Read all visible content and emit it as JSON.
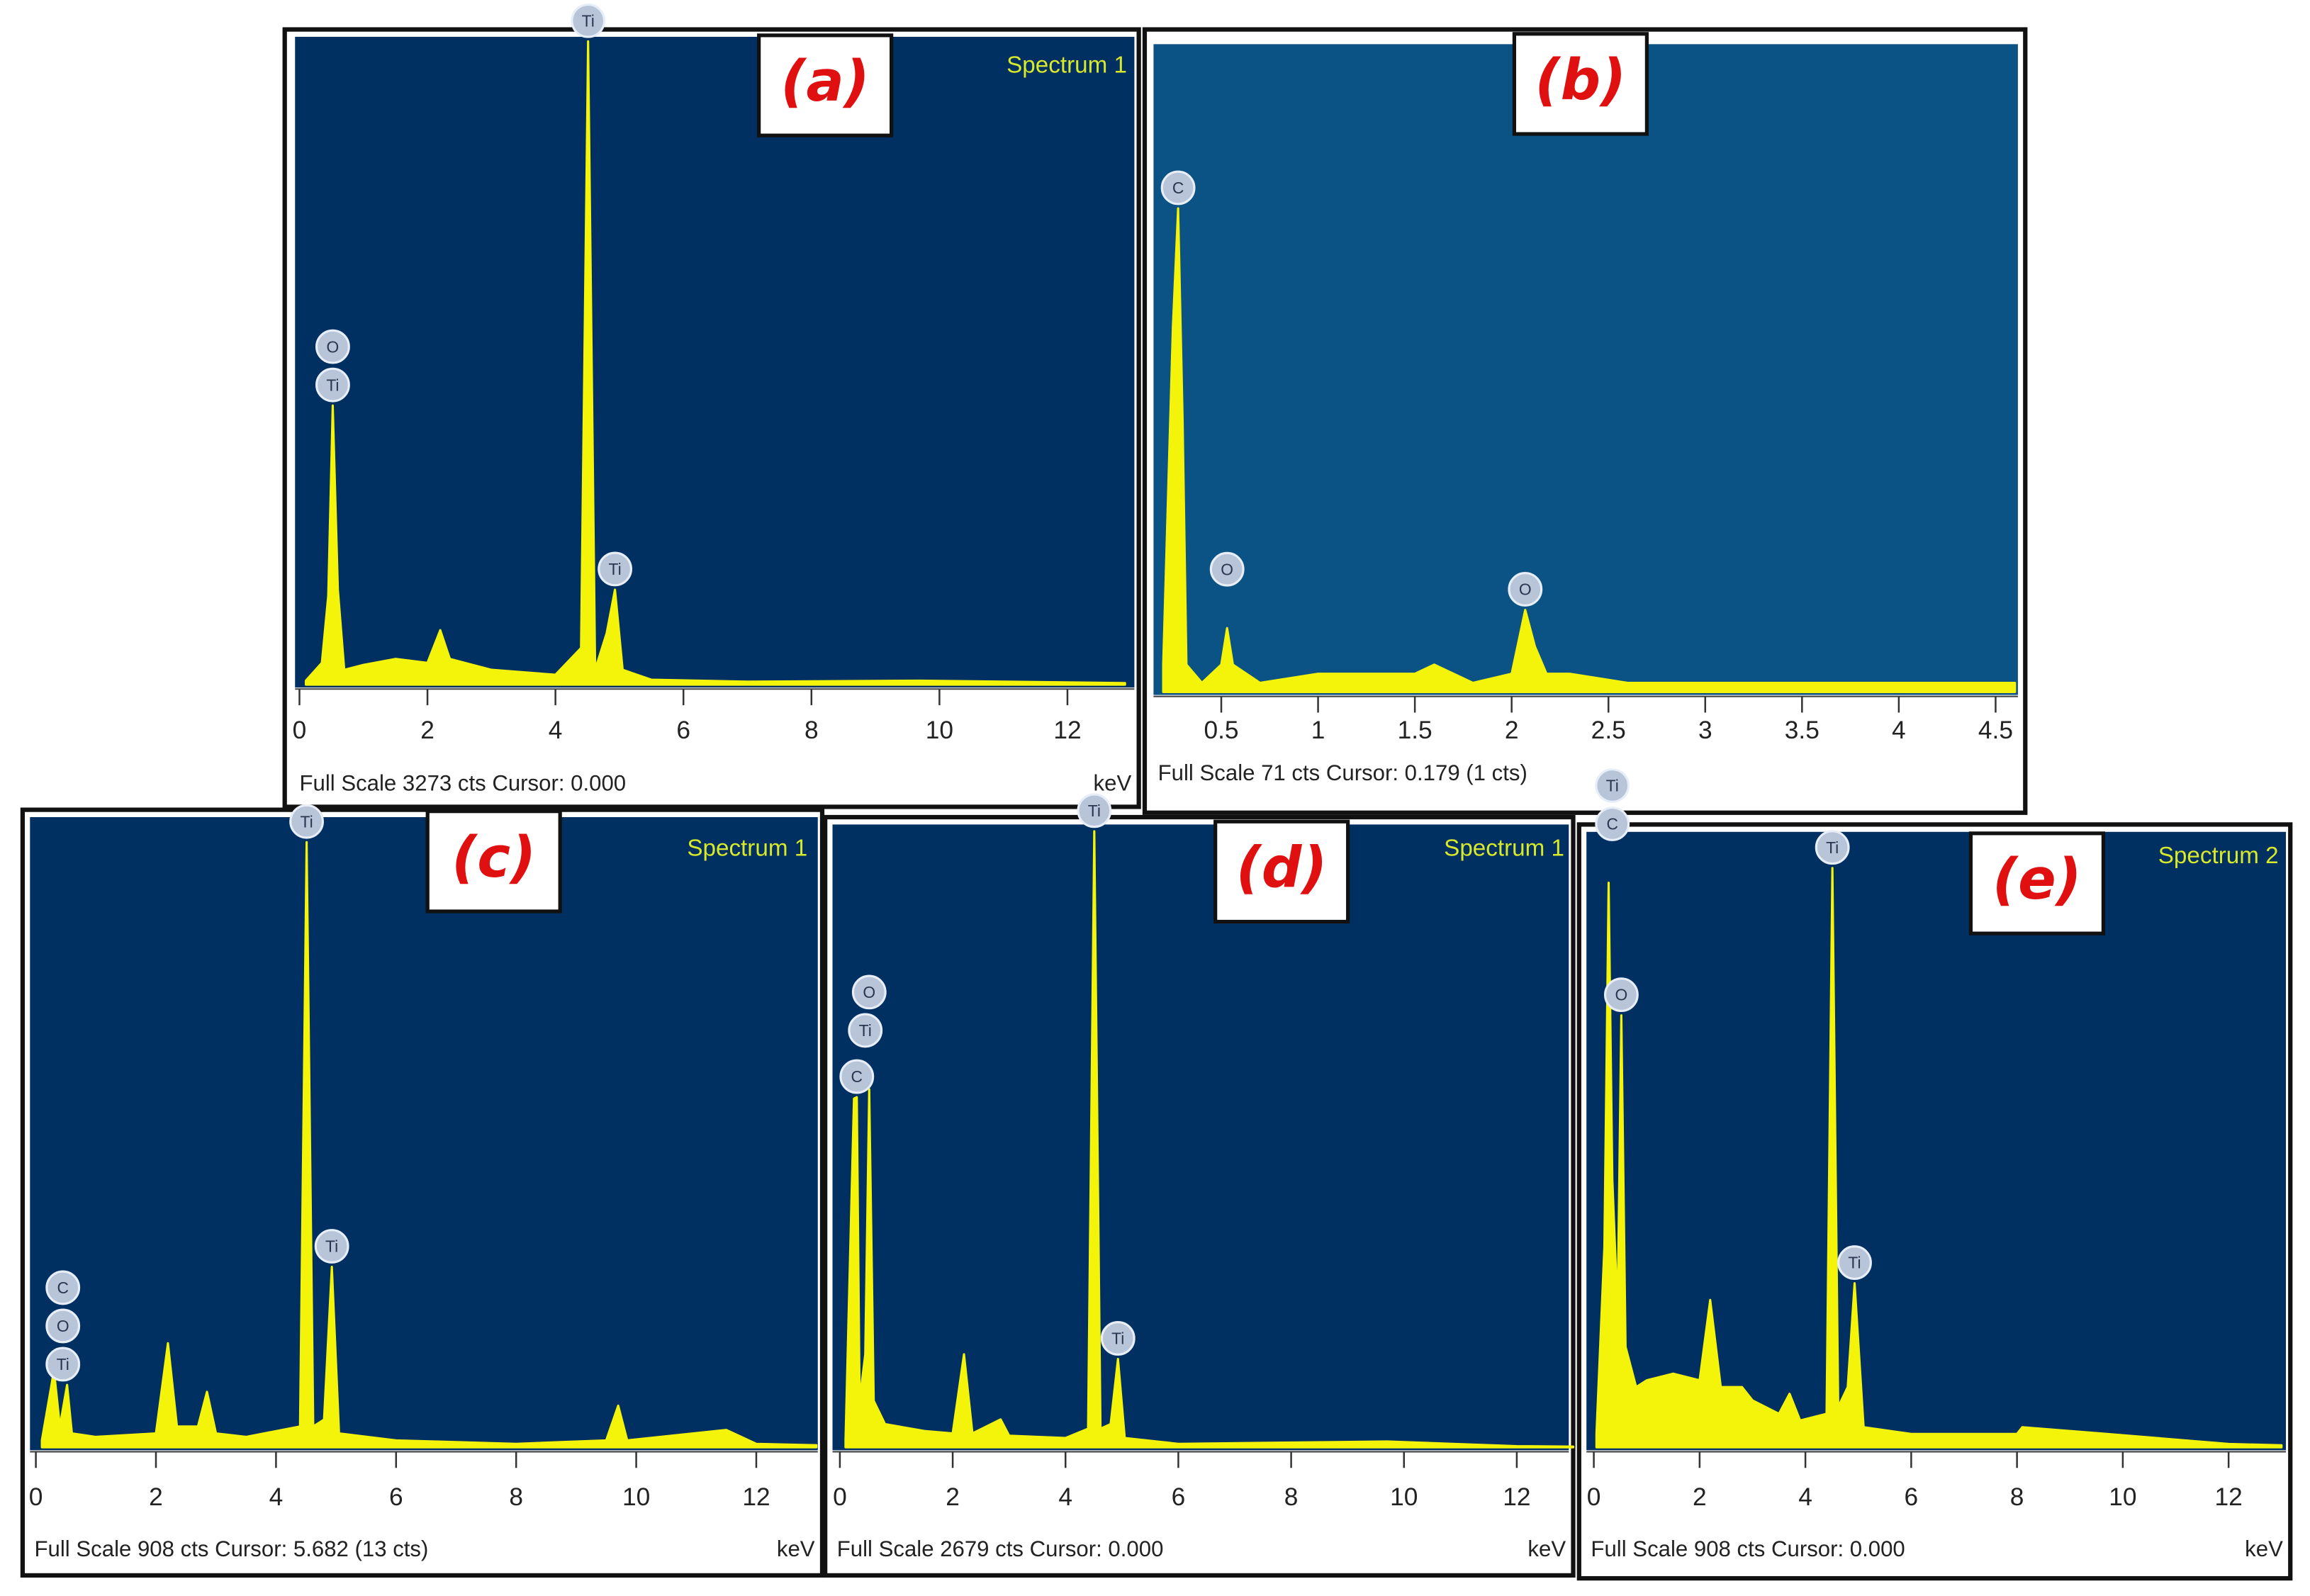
{
  "chart_data": [
    {
      "type": "area",
      "panel": "(a)",
      "spectrum": "Spectrum 1",
      "footer": "Full Scale 3273 cts Cursor: 0.000",
      "xlabel": "keV",
      "color": "#f4f40a",
      "background": "#002f62",
      "xlim": [
        0,
        13
      ],
      "xticks": [
        0,
        2,
        4,
        6,
        8,
        10,
        12
      ],
      "ylim": [
        0,
        3273
      ],
      "x": [
        0.1,
        0.35,
        0.45,
        0.52,
        0.6,
        0.7,
        1.0,
        1.5,
        2.0,
        2.2,
        2.35,
        3.0,
        4.0,
        4.4,
        4.51,
        4.62,
        4.8,
        4.93,
        5.05,
        5.5,
        7,
        9.7,
        12.9
      ],
      "values": [
        20,
        110,
        450,
        1410,
        480,
        75,
        100,
        130,
        110,
        275,
        130,
        75,
        50,
        185,
        3250,
        75,
        260,
        480,
        75,
        25,
        15,
        20,
        8
      ],
      "peak_labels": [
        {
          "label": "Ti",
          "x": 0.52
        },
        {
          "label": "O",
          "x": 0.52
        },
        {
          "label": "Ti",
          "x": 4.51
        },
        {
          "label": "Ti",
          "x": 4.93
        }
      ]
    },
    {
      "type": "area",
      "panel": "(b)",
      "footer": "Full Scale 71 cts Cursor: 0.179  (1 cts)",
      "color": "#f4f40a",
      "background": "#0b5384",
      "xlim": [
        0.15,
        4.6
      ],
      "xticks": [
        0.5,
        1,
        1.5,
        2,
        2.5,
        3,
        3.5,
        4,
        4.5
      ],
      "ylim": [
        0,
        71
      ],
      "x": [
        0.2,
        0.25,
        0.277,
        0.3,
        0.32,
        0.4,
        0.5,
        0.53,
        0.56,
        0.7,
        1.0,
        1.2,
        1.5,
        1.6,
        1.8,
        2.0,
        2.03,
        2.07,
        2.12,
        2.18,
        2.3,
        2.6,
        3.0,
        3.5,
        4.0,
        4.6
      ],
      "values": [
        3,
        40,
        53,
        30,
        3,
        1,
        3,
        7,
        3,
        1,
        2,
        2,
        2,
        3,
        1,
        2,
        5,
        9,
        5,
        2,
        2,
        1,
        1,
        1,
        1,
        1
      ],
      "peak_labels": [
        {
          "label": "C",
          "x": 0.277
        },
        {
          "label": "O",
          "x": 0.53
        },
        {
          "label": "O",
          "x": 2.07
        }
      ]
    },
    {
      "type": "area",
      "panel": "(c)",
      "spectrum": "Spectrum 1",
      "footer": "Full Scale 908 cts Cursor: 5.682  (13 cts)",
      "xlabel": "keV",
      "color": "#f4f40a",
      "background": "#002f62",
      "xlim": [
        0,
        13
      ],
      "xticks": [
        0,
        2,
        4,
        6,
        8,
        10,
        12
      ],
      "ylim": [
        0,
        908
      ],
      "x": [
        0.1,
        0.27,
        0.3,
        0.4,
        0.52,
        0.6,
        1,
        2,
        2.2,
        2.35,
        2.7,
        2.85,
        3,
        3.5,
        4.4,
        4.51,
        4.62,
        4.8,
        4.93,
        5.05,
        6,
        8,
        9.5,
        9.7,
        9.85,
        11.5,
        12,
        13
      ],
      "values": [
        10,
        95,
        112,
        30,
        90,
        20,
        15,
        20,
        150,
        30,
        30,
        80,
        20,
        15,
        30,
        872,
        30,
        40,
        260,
        20,
        10,
        5,
        10,
        60,
        10,
        25,
        5,
        3
      ],
      "peak_labels": [
        {
          "label": "Ti",
          "x": 0.45
        },
        {
          "label": "O",
          "x": 0.45
        },
        {
          "label": "C",
          "x": 0.45
        },
        {
          "label": "Ti",
          "x": 4.51
        },
        {
          "label": "Ti",
          "x": 4.93
        }
      ]
    },
    {
      "type": "area",
      "panel": "(d)",
      "spectrum": "Spectrum 1",
      "footer": "Full Scale 2679 cts Cursor: 0.000",
      "xlabel": "keV",
      "color": "#f4f40a",
      "background": "#002f62",
      "xlim": [
        0,
        13
      ],
      "xticks": [
        0,
        2,
        4,
        6,
        8,
        10,
        12
      ],
      "ylim": [
        0,
        2679
      ],
      "x": [
        0.1,
        0.25,
        0.3,
        0.35,
        0.45,
        0.52,
        0.6,
        0.8,
        1.5,
        2.0,
        2.2,
        2.35,
        2.85,
        3.0,
        4.0,
        4.4,
        4.51,
        4.62,
        4.8,
        4.93,
        5.05,
        6,
        9.7,
        12,
        13
      ],
      "values": [
        30,
        1500,
        1506,
        200,
        400,
        1540,
        200,
        100,
        70,
        60,
        400,
        60,
        120,
        50,
        40,
        80,
        2650,
        80,
        100,
        380,
        40,
        15,
        25,
        5,
        3
      ],
      "peak_labels": [
        {
          "label": "C",
          "x": 0.3
        },
        {
          "label": "Ti",
          "x": 0.45
        },
        {
          "label": "O",
          "x": 0.52
        },
        {
          "label": "Ti",
          "x": 4.51
        },
        {
          "label": "Ti",
          "x": 4.93
        }
      ]
    },
    {
      "type": "area",
      "panel": "(e)",
      "spectrum": "Spectrum 2",
      "footer": "Full Scale 908 cts Cursor: 0.000",
      "xlabel": "keV",
      "color": "#f4f40a",
      "background": "#002f62",
      "xlim": [
        0,
        13
      ],
      "xticks": [
        0,
        2,
        4,
        6,
        8,
        10,
        12
      ],
      "ylim": [
        0,
        908
      ],
      "x": [
        0.05,
        0.2,
        0.28,
        0.35,
        0.45,
        0.52,
        0.6,
        0.8,
        1.0,
        1.5,
        2.0,
        2.2,
        2.4,
        2.8,
        3.0,
        3.5,
        3.7,
        3.9,
        4.4,
        4.51,
        4.62,
        4.8,
        4.93,
        5.1,
        6,
        8,
        8.1,
        9.7,
        12,
        13
      ],
      "values": [
        20,
        300,
        843,
        400,
        200,
        645,
        150,
        90,
        100,
        110,
        100,
        220,
        90,
        90,
        70,
        50,
        80,
        40,
        50,
        865,
        60,
        90,
        245,
        30,
        20,
        20,
        30,
        20,
        5,
        3
      ],
      "peak_labels": [
        {
          "label": "O",
          "x": 0.52
        },
        {
          "label": "C",
          "x": 0.35
        },
        {
          "label": "Ti",
          "x": 0.35
        },
        {
          "label": "Ti",
          "x": 4.51
        },
        {
          "label": "Ti",
          "x": 4.93
        }
      ]
    }
  ]
}
